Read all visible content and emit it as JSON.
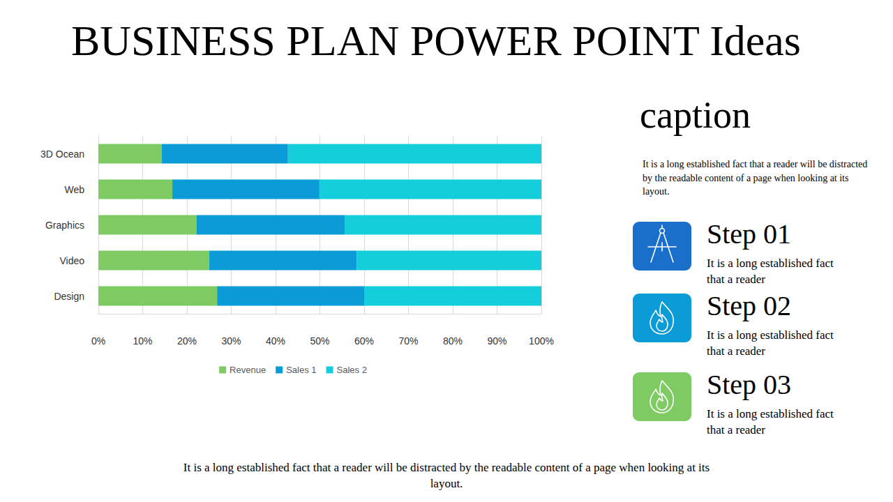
{
  "title": "BUSINESS PLAN POWER POINT Ideas",
  "chart_data": {
    "type": "bar",
    "orientation": "horizontal",
    "stacked": true,
    "categories": [
      "3D Ocean",
      "Web",
      "Graphics",
      "Video",
      "Design"
    ],
    "series": [
      {
        "name": "Revenue",
        "color": "#7dcb62",
        "values": [
          14.3,
          16.7,
          22.2,
          25.0,
          26.8
        ]
      },
      {
        "name": "Sales 1",
        "color": "#0b9bd7",
        "values": [
          28.5,
          33.2,
          33.4,
          33.3,
          33.2
        ]
      },
      {
        "name": "Sales 2",
        "color": "#14cfdb",
        "values": [
          57.2,
          50.1,
          44.4,
          41.7,
          40.0
        ]
      }
    ],
    "xlim": [
      0,
      100
    ],
    "xticks": [
      {
        "value": 0,
        "label": "0%"
      },
      {
        "value": 10,
        "label": "10%"
      },
      {
        "value": 20,
        "label": "20%"
      },
      {
        "value": 30,
        "label": "30%"
      },
      {
        "value": 40,
        "label": "40%"
      },
      {
        "value": 50,
        "label": "50%"
      },
      {
        "value": 60,
        "label": "60%"
      },
      {
        "value": 70,
        "label": "70%"
      },
      {
        "value": 80,
        "label": "80%"
      },
      {
        "value": 90,
        "label": "90%"
      },
      {
        "value": 100,
        "label": "100%"
      }
    ],
    "grid": true,
    "legend": "bottom",
    "data_labels": false
  },
  "caption": {
    "heading": "caption",
    "text": "It is a long established fact that a reader will be distracted by the readable content of a page when looking at its layout."
  },
  "steps": [
    {
      "title": "Step 01",
      "text": "It is a long established fact that a reader"
    },
    {
      "title": "Step 02",
      "text": "It is a long established fact that a reader"
    },
    {
      "title": "Step 03",
      "text": "It is a long established fact that a reader"
    }
  ],
  "footer": "It is a long established fact that a reader will be distracted by the readable content of a page when looking at its layout."
}
